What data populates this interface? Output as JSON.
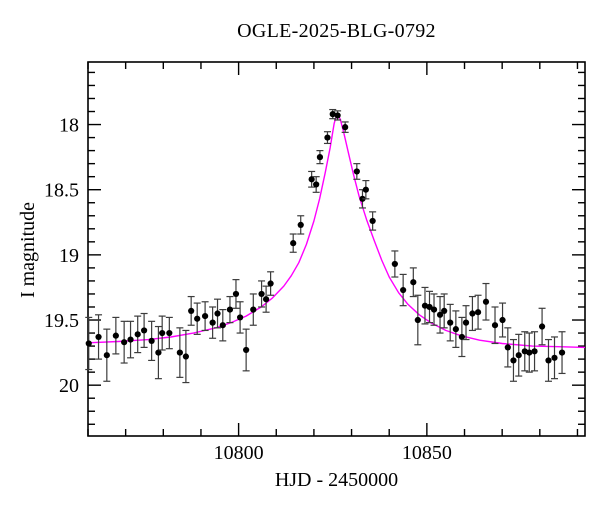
{
  "page": {
    "background": "#ffffff"
  },
  "chart_data": {
    "type": "scatter",
    "title": "OGLE-2025-BLG-0792",
    "xlabel": "HJD - 2450000",
    "ylabel": "I magnitude",
    "frame_color": "#000000",
    "grid": false,
    "legend": "none",
    "x_axis": {
      "min": 10760,
      "max": 10892,
      "major_ticks": [
        {
          "value": 10800,
          "label": "10800"
        },
        {
          "value": 10850,
          "label": "10850"
        }
      ],
      "minor_tick_step": 10
    },
    "y_axis": {
      "min": 17.52,
      "max": 20.39,
      "inverted_magnitude_scale": true,
      "major_ticks": [
        {
          "value": 18.0,
          "label": "18"
        },
        {
          "value": 18.5,
          "label": "18.5"
        },
        {
          "value": 19.0,
          "label": "19"
        },
        {
          "value": 19.5,
          "label": "19.5"
        },
        {
          "value": 20.0,
          "label": "20"
        }
      ],
      "minor_tick_step": 0.1
    },
    "series": [
      {
        "name": "OGLE I-band photometry",
        "role": "data",
        "marker": "filled-circle",
        "color": "#000000",
        "error_bar_color": "#3c3c3c",
        "points_format": [
          "hjd",
          "i_mag",
          "mag_error"
        ],
        "points": [
          [
            10760.2,
            19.68,
            0.2
          ],
          [
            10762.8,
            19.63,
            0.17
          ],
          [
            10765.0,
            19.77,
            0.2
          ],
          [
            10767.4,
            19.62,
            0.14
          ],
          [
            10769.6,
            19.67,
            0.16
          ],
          [
            10771.3,
            19.65,
            0.14
          ],
          [
            10773.2,
            19.61,
            0.14
          ],
          [
            10774.9,
            19.58,
            0.13
          ],
          [
            10776.9,
            19.66,
            0.15
          ],
          [
            10778.7,
            19.75,
            0.2
          ],
          [
            10779.7,
            19.6,
            0.13
          ],
          [
            10781.6,
            19.6,
            0.12
          ],
          [
            10784.4,
            19.75,
            0.19
          ],
          [
            10786.0,
            19.78,
            0.2
          ],
          [
            10787.4,
            19.43,
            0.11
          ],
          [
            10789.0,
            19.49,
            0.12
          ],
          [
            10791.1,
            19.47,
            0.11
          ],
          [
            10793.1,
            19.52,
            0.12
          ],
          [
            10794.4,
            19.45,
            0.11
          ],
          [
            10795.8,
            19.54,
            0.12
          ],
          [
            10797.7,
            19.42,
            0.1
          ],
          [
            10799.3,
            19.3,
            0.11
          ],
          [
            10800.4,
            19.48,
            0.12
          ],
          [
            10802.0,
            19.73,
            0.16
          ],
          [
            10803.9,
            19.42,
            0.12
          ],
          [
            10806.1,
            19.3,
            0.1
          ],
          [
            10807.3,
            19.34,
            0.1
          ],
          [
            10808.5,
            19.22,
            0.09
          ],
          [
            10814.5,
            18.91,
            0.07
          ],
          [
            10816.5,
            18.77,
            0.07
          ],
          [
            10819.4,
            18.42,
            0.06
          ],
          [
            10820.6,
            18.46,
            0.06
          ],
          [
            10821.6,
            18.25,
            0.05
          ],
          [
            10823.6,
            18.1,
            0.045
          ],
          [
            10825.0,
            17.92,
            0.035
          ],
          [
            10826.3,
            17.93,
            0.035
          ],
          [
            10828.3,
            18.02,
            0.04
          ],
          [
            10831.4,
            18.36,
            0.06
          ],
          [
            10832.9,
            18.57,
            0.07
          ],
          [
            10833.8,
            18.5,
            0.07
          ],
          [
            10835.6,
            18.74,
            0.07
          ],
          [
            10841.5,
            19.07,
            0.1
          ],
          [
            10843.7,
            19.27,
            0.12
          ],
          [
            10846.4,
            19.21,
            0.11
          ],
          [
            10847.6,
            19.5,
            0.19
          ],
          [
            10849.5,
            19.39,
            0.14
          ],
          [
            10850.7,
            19.4,
            0.12
          ],
          [
            10851.9,
            19.42,
            0.12
          ],
          [
            10853.5,
            19.46,
            0.14
          ],
          [
            10854.6,
            19.43,
            0.13
          ],
          [
            10856.2,
            19.52,
            0.14
          ],
          [
            10857.7,
            19.57,
            0.14
          ],
          [
            10859.3,
            19.63,
            0.15
          ],
          [
            10860.4,
            19.52,
            0.13
          ],
          [
            10862.1,
            19.45,
            0.13
          ],
          [
            10863.6,
            19.44,
            0.13
          ],
          [
            10865.7,
            19.36,
            0.14
          ],
          [
            10868.1,
            19.54,
            0.14
          ],
          [
            10870.1,
            19.5,
            0.13
          ],
          [
            10871.5,
            19.71,
            0.15
          ],
          [
            10873.0,
            19.81,
            0.16
          ],
          [
            10874.4,
            19.77,
            0.16
          ],
          [
            10876.0,
            19.74,
            0.15
          ],
          [
            10877.2,
            19.75,
            0.15
          ],
          [
            10878.6,
            19.74,
            0.15
          ],
          [
            10880.6,
            19.55,
            0.14
          ],
          [
            10882.3,
            19.81,
            0.16
          ],
          [
            10883.9,
            19.79,
            0.16
          ],
          [
            10885.9,
            19.75,
            0.16
          ]
        ]
      },
      {
        "name": "microlensing model fit",
        "role": "model",
        "color": "#ff00ff",
        "points_format": [
          "hjd",
          "i_mag"
        ],
        "points": [
          [
            10760,
            19.675
          ],
          [
            10768,
            19.665
          ],
          [
            10776,
            19.65
          ],
          [
            10782,
            19.63
          ],
          [
            10788,
            19.6
          ],
          [
            10794,
            19.56
          ],
          [
            10798,
            19.52
          ],
          [
            10802,
            19.47
          ],
          [
            10806,
            19.4
          ],
          [
            10809,
            19.33
          ],
          [
            10812,
            19.24
          ],
          [
            10814,
            19.16
          ],
          [
            10816,
            19.06
          ],
          [
            10818,
            18.92
          ],
          [
            10820,
            18.74
          ],
          [
            10821.5,
            18.57
          ],
          [
            10823,
            18.37
          ],
          [
            10824.3,
            18.18
          ],
          [
            10825.4,
            17.99
          ],
          [
            10826.2,
            17.915
          ],
          [
            10827,
            17.96
          ],
          [
            10828,
            18.07
          ],
          [
            10829.2,
            18.22
          ],
          [
            10830.5,
            18.38
          ],
          [
            10832,
            18.55
          ],
          [
            10834,
            18.73
          ],
          [
            10836,
            18.89
          ],
          [
            10838,
            19.04
          ],
          [
            10840,
            19.17
          ],
          [
            10842.5,
            19.29
          ],
          [
            10845,
            19.38
          ],
          [
            10848,
            19.46
          ],
          [
            10851,
            19.52
          ],
          [
            10855,
            19.58
          ],
          [
            10859,
            19.62
          ],
          [
            10864,
            19.655
          ],
          [
            10870,
            19.68
          ],
          [
            10878,
            19.7
          ],
          [
            10885,
            19.705
          ],
          [
            10892,
            19.71
          ]
        ]
      }
    ]
  }
}
